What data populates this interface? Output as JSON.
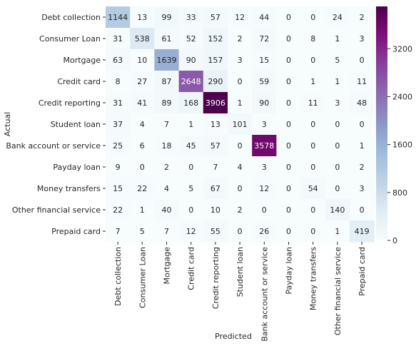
{
  "chart_data": {
    "type": "heatmap",
    "title": "",
    "xlabel": "Predicted",
    "ylabel": "Actual",
    "categories": [
      "Debt collection",
      "Consumer Loan",
      "Mortgage",
      "Credit card",
      "Credit reporting",
      "Student loan",
      "Bank account or service",
      "Payday loan",
      "Money transfers",
      "Other financial service",
      "Prepaid card"
    ],
    "matrix": [
      [
        1144,
        13,
        99,
        33,
        57,
        12,
        44,
        0,
        0,
        24,
        2
      ],
      [
        31,
        538,
        61,
        52,
        152,
        2,
        72,
        0,
        8,
        1,
        3
      ],
      [
        63,
        10,
        1639,
        90,
        157,
        3,
        15,
        0,
        0,
        5,
        0
      ],
      [
        8,
        27,
        87,
        2648,
        290,
        0,
        59,
        0,
        1,
        1,
        11
      ],
      [
        31,
        41,
        89,
        168,
        3906,
        1,
        90,
        0,
        11,
        3,
        48
      ],
      [
        37,
        4,
        7,
        1,
        13,
        101,
        3,
        0,
        0,
        0,
        0
      ],
      [
        25,
        6,
        18,
        45,
        57,
        0,
        3578,
        0,
        0,
        0,
        1
      ],
      [
        9,
        0,
        2,
        0,
        7,
        4,
        3,
        0,
        0,
        0,
        2
      ],
      [
        15,
        22,
        4,
        5,
        67,
        0,
        12,
        0,
        54,
        0,
        3
      ],
      [
        22,
        1,
        40,
        0,
        10,
        2,
        0,
        0,
        0,
        140,
        0
      ],
      [
        7,
        5,
        7,
        12,
        55,
        0,
        26,
        0,
        0,
        1,
        419
      ]
    ],
    "colormap": "BuPu",
    "vmin": 0,
    "vmax": 3906,
    "colorbar_ticks": [
      0,
      800,
      1600,
      2400,
      3200
    ],
    "annotated": true,
    "grid": false
  }
}
